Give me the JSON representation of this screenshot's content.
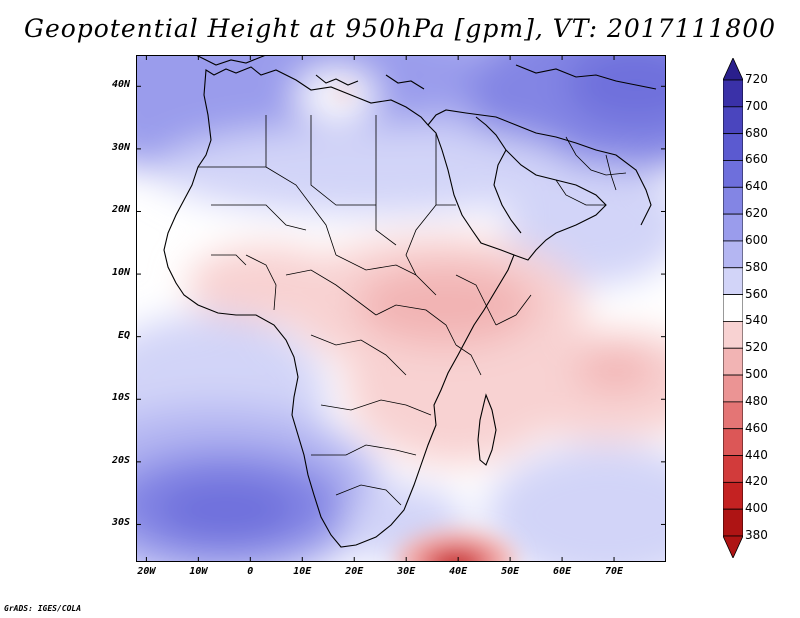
{
  "title": "Geopotential Height at 950hPa [gpm], VT: 2017111800",
  "credit": "GrADS: IGES/COLA",
  "axes": {
    "lat_labels": [
      "40N",
      "30N",
      "20N",
      "10N",
      "EQ",
      "10S",
      "20S",
      "30S"
    ],
    "lat_values": [
      40,
      30,
      20,
      10,
      0,
      -10,
      -20,
      -30
    ],
    "lon_labels": [
      "20W",
      "10W",
      "0",
      "10E",
      "20E",
      "30E",
      "40E",
      "50E",
      "60E",
      "70E"
    ],
    "lon_values": [
      -20,
      -10,
      0,
      10,
      20,
      30,
      40,
      50,
      60,
      70
    ],
    "lon_range": [
      -22,
      80
    ],
    "lat_range": [
      -36,
      45
    ]
  },
  "colorbar": {
    "levels": [
      720,
      700,
      680,
      660,
      640,
      620,
      600,
      580,
      560,
      540,
      520,
      500,
      480,
      460,
      440,
      420,
      400,
      380
    ],
    "colors": [
      "#2a1f8c",
      "#3a31a8",
      "#4a45be",
      "#5b5ad0",
      "#6e6fdc",
      "#8385e4",
      "#9a9cec",
      "#b4b6f2",
      "#d2d4f8",
      "#ffffff",
      "#f8d2d2",
      "#f2b4b4",
      "#eb9494",
      "#e47575",
      "#dc5757",
      "#d23b3b",
      "#c42222",
      "#ae1414"
    ]
  }
}
